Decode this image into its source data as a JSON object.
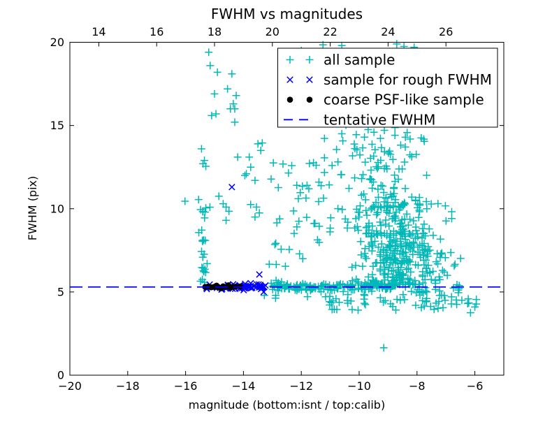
{
  "chart_data": {
    "type": "scatter",
    "title": "FWHM vs magnitudes",
    "xlabel": "magnitude (bottom:isnt / top:calib)",
    "ylabel": "FWHM (pix)",
    "xlim": [
      -20,
      -5
    ],
    "ylim": [
      0,
      20
    ],
    "bottom_axis_ticks": [
      -20,
      -18,
      -16,
      -14,
      -12,
      -10,
      -8,
      -6
    ],
    "top_axis_ticks": [
      14,
      16,
      18,
      20,
      22,
      24,
      26
    ],
    "top_axis_offset": 33,
    "y_ticks": [
      0,
      5,
      10,
      15,
      20
    ],
    "grid": false,
    "tentative_fwhm": 5.3,
    "seed": 7,
    "colors": {
      "all_sample": "#00b8b8",
      "rough_fwhm": "#0000ff",
      "coarse_psf": "#000000",
      "tentative_line": "#0000ff",
      "axis": "#000000",
      "background": "#ffffff"
    },
    "legend": {
      "position": "upper right",
      "entries": [
        {
          "label": "all sample",
          "marker": "plus",
          "color": "#00b8b8"
        },
        {
          "label": "sample for rough FWHM",
          "marker": "cross",
          "color": "#0000ff"
        },
        {
          "label": "coarse PSF-like sample",
          "marker": "dot",
          "color": "#000000"
        },
        {
          "label": "tentative FWHM",
          "marker": "dash",
          "color": "#0000ff"
        }
      ]
    },
    "series": [
      {
        "name": "all sample",
        "marker": "plus",
        "color": "#00b8b8",
        "points": [
          [
            -15.2,
            19.4
          ],
          [
            -15.15,
            18.6
          ],
          [
            -14.9,
            18.2
          ],
          [
            -14.4,
            18.1
          ],
          [
            -14.55,
            17.2
          ],
          [
            -15.0,
            16.9
          ],
          [
            -14.25,
            16.8
          ],
          [
            -14.35,
            16.3
          ],
          [
            -14.45,
            16.0
          ],
          [
            -14.3,
            16.0
          ],
          [
            -14.95,
            15.7
          ],
          [
            -15.1,
            15.6
          ],
          [
            -14.3,
            15.2
          ],
          [
            -15.45,
            13.6
          ],
          [
            -13.5,
            13.9
          ],
          [
            -13.4,
            13.5
          ],
          [
            -15.35,
            12.9
          ],
          [
            -15.4,
            12.7
          ],
          [
            -15.3,
            12.55
          ],
          [
            -14.2,
            13.1
          ],
          [
            -13.8,
            13.1
          ],
          [
            -13.75,
            12.5
          ],
          [
            -13.9,
            12.1
          ],
          [
            -13.95,
            12.0
          ],
          [
            -13.6,
            11.7
          ],
          [
            -16.02,
            10.45
          ],
          [
            -15.55,
            10.55
          ],
          [
            -14.85,
            10.75
          ],
          [
            -14.7,
            10.3
          ],
          [
            -14.6,
            10.1
          ],
          [
            -14.5,
            9.85
          ],
          [
            -14.6,
            9.3
          ],
          [
            -13.75,
            10.25
          ],
          [
            -13.55,
            10.1
          ],
          [
            -13.6,
            9.5
          ],
          [
            -13.45,
            9.75
          ],
          [
            -12.0,
            19.5
          ],
          [
            -11.25,
            19.85
          ],
          [
            -10.6,
            19.8
          ],
          [
            -8.7,
            19.9
          ],
          [
            -8.45,
            19.75
          ],
          [
            -8.1,
            19.7
          ],
          [
            -10.6,
            14.5
          ],
          [
            -10.1,
            14.45
          ],
          [
            -7.75,
            14.05
          ],
          [
            -13.35,
            13.95
          ],
          [
            -9.15,
            1.65
          ],
          [
            -6.0,
            4.1
          ],
          [
            -6.15,
            3.75
          ],
          [
            -6.25,
            4.3
          ],
          [
            -6.45,
            4.5
          ],
          [
            -5.95,
            4.55
          ],
          [
            -7.75,
            4.15
          ]
        ],
        "clusters": [
          {
            "n": 26,
            "x": {
              "dist": "normal",
              "mu": -15.38,
              "sigma": 0.08,
              "min": -15.6,
              "max": -15.15
            },
            "y": {
              "dist": "uniform",
              "min": 5.55,
              "max": 10.2
            }
          },
          {
            "n": 48,
            "x": {
              "dist": "uniform",
              "min": -13.3,
              "max": -10.9
            },
            "y": {
              "dist": "uniform",
              "min": 4.6,
              "max": 12.8
            }
          },
          {
            "n": 70,
            "x": {
              "dist": "normal",
              "mu": -9.3,
              "sigma": 0.85,
              "min": -11.2,
              "max": -7.2
            },
            "y": {
              "dist": "uniform",
              "min": 10.6,
              "max": 14.3
            }
          },
          {
            "n": 130,
            "x": {
              "dist": "normal",
              "mu": -8.9,
              "sigma": 0.8,
              "min": -11.0,
              "max": -6.8
            },
            "y": {
              "dist": "uniform",
              "min": 8.3,
              "max": 10.7
            }
          },
          {
            "n": 255,
            "x": {
              "dist": "normal",
              "mu": -8.55,
              "sigma": 0.75,
              "min": -10.8,
              "max": -6.3
            },
            "y": {
              "dist": "normal",
              "mu": 6.8,
              "sigma": 1.0,
              "min": 5.45,
              "max": 8.5
            }
          },
          {
            "n": 155,
            "x": {
              "dist": "uniform",
              "min": -13.05,
              "max": -8.7
            },
            "y": {
              "dist": "normal",
              "mu": 5.32,
              "sigma": 0.13,
              "min": 4.9,
              "max": 5.75
            }
          },
          {
            "n": 25,
            "x": {
              "dist": "uniform",
              "min": -8.7,
              "max": -6.4
            },
            "y": {
              "dist": "normal",
              "mu": 5.3,
              "sigma": 0.25,
              "min": 4.6,
              "max": 5.9
            }
          },
          {
            "n": 55,
            "x": {
              "dist": "uniform",
              "min": -11.2,
              "max": -5.85
            },
            "y": {
              "dist": "uniform",
              "min": 3.9,
              "max": 4.85
            }
          },
          {
            "n": 12,
            "x": {
              "dist": "uniform",
              "min": -10.9,
              "max": -7.6
            },
            "y": {
              "dist": "uniform",
              "min": 13.3,
              "max": 15.2
            }
          }
        ]
      },
      {
        "name": "sample for rough FWHM",
        "marker": "cross",
        "color": "#0000ff",
        "points": [
          [
            -14.4,
            11.3
          ],
          [
            -13.45,
            6.05
          ],
          [
            -13.3,
            5.0
          ]
        ],
        "clusters": [
          {
            "n": 18,
            "x": {
              "dist": "uniform",
              "min": -15.3,
              "max": -14.15
            },
            "y": {
              "dist": "normal",
              "mu": 5.35,
              "sigma": 0.1,
              "min": 5.05,
              "max": 5.75
            }
          },
          {
            "n": 40,
            "x": {
              "dist": "uniform",
              "min": -14.15,
              "max": -13.18
            },
            "y": {
              "dist": "normal",
              "mu": 5.32,
              "sigma": 0.1,
              "min": 5.05,
              "max": 5.65
            }
          }
        ]
      },
      {
        "name": "coarse PSF-like sample",
        "marker": "dot",
        "color": "#000000",
        "points": [
          [
            -15.32,
            5.3
          ],
          [
            -15.22,
            5.33
          ],
          [
            -15.12,
            5.28
          ],
          [
            -15.02,
            5.3
          ],
          [
            -14.93,
            5.38
          ],
          [
            -14.88,
            5.28
          ],
          [
            -14.78,
            5.22
          ],
          [
            -14.7,
            5.34
          ],
          [
            -14.62,
            5.3
          ],
          [
            -14.52,
            5.4
          ],
          [
            -14.45,
            5.26
          ],
          [
            -14.38,
            5.3
          ],
          [
            -14.27,
            5.32
          ],
          [
            -14.12,
            5.33
          ]
        ],
        "clusters": []
      },
      {
        "name": "tentative FWHM",
        "marker": "hline",
        "linestyle": "dashed",
        "color": "#0000ff",
        "y": 5.3
      }
    ]
  }
}
